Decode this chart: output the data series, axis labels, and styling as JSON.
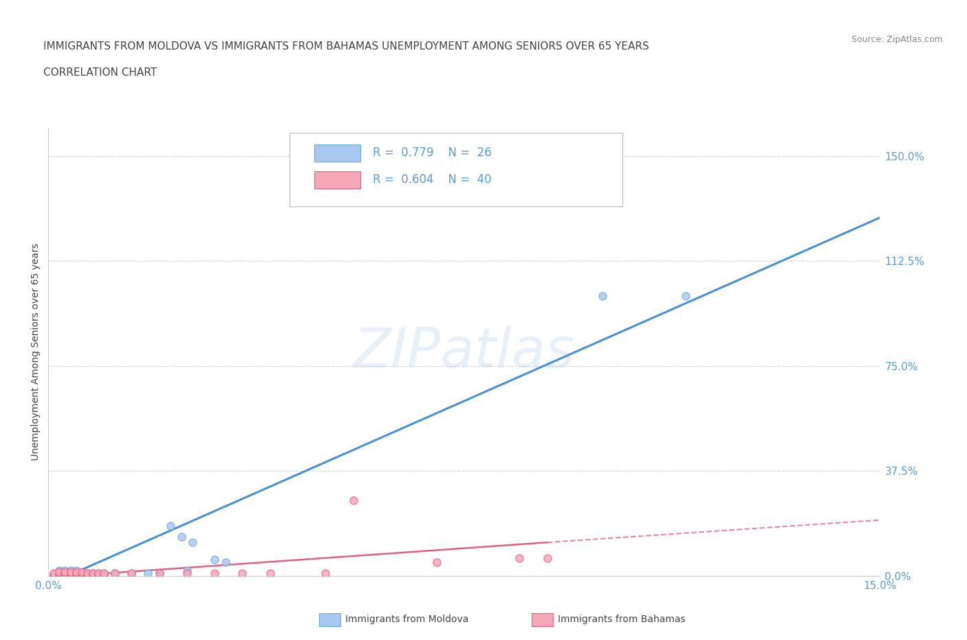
{
  "title_line1": "IMMIGRANTS FROM MOLDOVA VS IMMIGRANTS FROM BAHAMAS UNEMPLOYMENT AMONG SENIORS OVER 65 YEARS",
  "title_line2": "CORRELATION CHART",
  "source_text": "Source: ZipAtlas.com",
  "ylabel": "Unemployment Among Seniors over 65 years",
  "xlim": [
    0.0,
    0.15
  ],
  "ylim": [
    0.0,
    1.6
  ],
  "ytick_labels": [
    "0.0%",
    "37.5%",
    "75.0%",
    "112.5%",
    "150.0%"
  ],
  "ytick_values": [
    0.0,
    0.375,
    0.75,
    1.125,
    1.5
  ],
  "moldova_color": "#a8c8f0",
  "moldova_edge_color": "#6aaad4",
  "bahamas_color": "#f4a8b8",
  "bahamas_edge_color": "#e06080",
  "moldova_R": 0.779,
  "moldova_N": 26,
  "bahamas_R": 0.604,
  "bahamas_N": 40,
  "bottom_legend_moldova": "Immigrants from Moldova",
  "bottom_legend_bahamas": "Immigrants from Bahamas",
  "watermark": "ZIPatlas",
  "moldova_scatter_x": [
    0.001,
    0.002,
    0.002,
    0.003,
    0.003,
    0.004,
    0.004,
    0.005,
    0.005,
    0.006,
    0.007,
    0.008,
    0.009,
    0.01,
    0.012,
    0.015,
    0.018,
    0.02,
    0.025,
    0.022,
    0.024,
    0.026,
    0.03,
    0.032,
    0.1,
    0.115
  ],
  "moldova_scatter_y": [
    0.005,
    0.01,
    0.02,
    0.01,
    0.02,
    0.01,
    0.02,
    0.01,
    0.02,
    0.01,
    0.01,
    0.01,
    0.01,
    0.01,
    0.01,
    0.01,
    0.01,
    0.01,
    0.02,
    0.18,
    0.14,
    0.12,
    0.06,
    0.05,
    1.0,
    1.0
  ],
  "bahamas_scatter_x": [
    0.001,
    0.001,
    0.001,
    0.002,
    0.002,
    0.002,
    0.002,
    0.003,
    0.003,
    0.003,
    0.003,
    0.004,
    0.004,
    0.004,
    0.005,
    0.005,
    0.005,
    0.006,
    0.006,
    0.006,
    0.007,
    0.007,
    0.008,
    0.008,
    0.009,
    0.009,
    0.01,
    0.01,
    0.012,
    0.015,
    0.02,
    0.025,
    0.03,
    0.035,
    0.04,
    0.05,
    0.055,
    0.07,
    0.085,
    0.09
  ],
  "bahamas_scatter_y": [
    0.005,
    0.008,
    0.01,
    0.005,
    0.008,
    0.01,
    0.015,
    0.005,
    0.008,
    0.01,
    0.015,
    0.005,
    0.01,
    0.015,
    0.005,
    0.01,
    0.015,
    0.005,
    0.01,
    0.015,
    0.005,
    0.01,
    0.005,
    0.01,
    0.005,
    0.01,
    0.005,
    0.01,
    0.01,
    0.01,
    0.01,
    0.01,
    0.01,
    0.01,
    0.01,
    0.01,
    0.27,
    0.05,
    0.065,
    0.065
  ],
  "moldova_trend_x0": 0.0,
  "moldova_trend_y0": -0.03,
  "moldova_trend_x1": 0.15,
  "moldova_trend_y1": 1.28,
  "bahamas_trend_solid_x0": 0.0,
  "bahamas_trend_solid_y0": -0.005,
  "bahamas_trend_solid_x1": 0.09,
  "bahamas_trend_solid_y1": 0.12,
  "bahamas_trend_dashed_x0": 0.09,
  "bahamas_trend_dashed_y0": 0.12,
  "bahamas_trend_dashed_x1": 0.15,
  "bahamas_trend_dashed_y1": 0.2,
  "grid_color": "#cccccc",
  "background_color": "#ffffff",
  "title_color": "#444444",
  "tick_color": "#5b9bd5",
  "line_color_moldova": "#4a90d0",
  "line_color_bahamas": "#e06080"
}
